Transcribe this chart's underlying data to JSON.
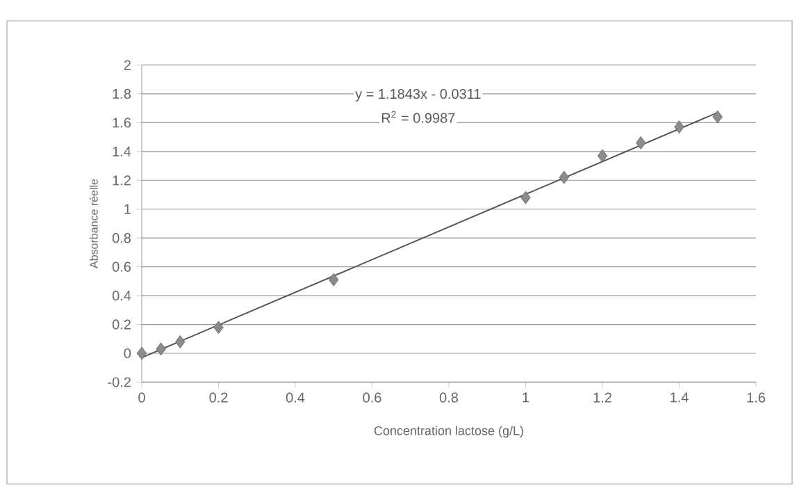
{
  "chart_data": {
    "type": "scatter",
    "xlabel": "Concentration lactose (g/L)",
    "ylabel": "Absorbance réelle",
    "annotations": [
      "y = 1.1843x - 0.0311",
      "R$^{2}$ = 0.9987"
    ],
    "series": [
      {
        "color": "#8c8c8c",
        "marker": "diamond",
        "x": [
          0,
          0.05,
          0.1,
          0.2,
          0.5,
          1,
          1.1,
          1.2,
          1.3,
          1.4,
          1.5
        ],
        "values": [
          0,
          0.03,
          0.08,
          0.18,
          0.51,
          1.08,
          1.22,
          1.37,
          1.46,
          1.57,
          1.64
        ]
      },
      {
        "type": "line",
        "color": "#555555",
        "marker": "none",
        "x": [
          0,
          1.5
        ],
        "values": [
          -0.03,
          1.67
        ]
      }
    ],
    "xlim": [
      0,
      1.6
    ],
    "xticks": [
      0,
      0.2,
      0.4,
      0.6,
      0.8,
      1,
      1.2,
      1.4,
      1.6
    ],
    "ylim": [
      -0.2,
      2
    ],
    "yticks": [
      -0.2,
      0,
      0.2,
      0.4,
      0.6,
      0.8,
      1,
      1.2,
      1.4,
      1.6,
      1.8,
      2
    ],
    "grid": "y",
    "legend": false
  }
}
